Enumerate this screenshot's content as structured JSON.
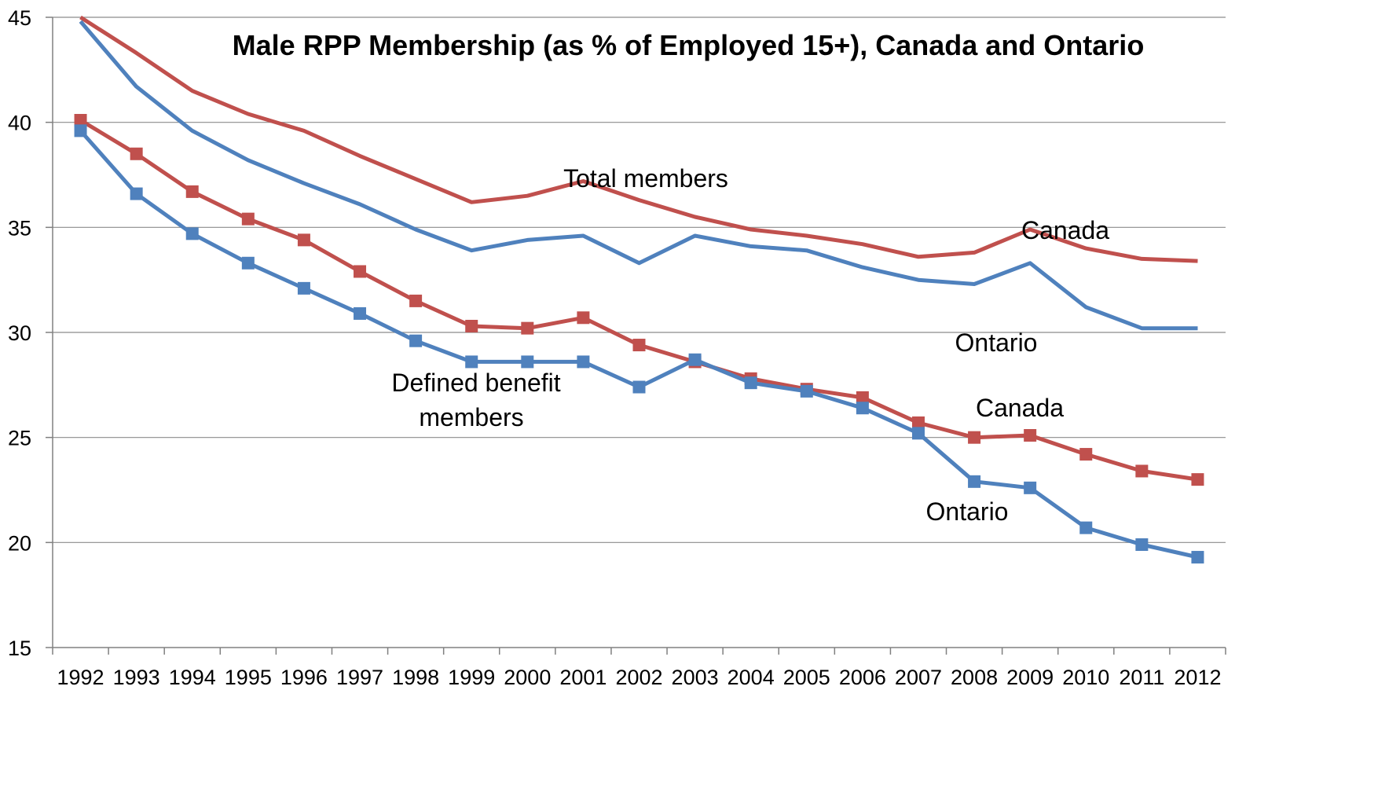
{
  "chart_data": {
    "type": "line",
    "title": "Male RPP Membership (as % of Employed 15+), Canada and Ontario",
    "xlabel": "",
    "ylabel": "",
    "ylim": [
      15,
      45
    ],
    "yticks": [
      "15",
      "20",
      "25",
      "30",
      "35",
      "40",
      "45"
    ],
    "grid": true,
    "legend": "none",
    "categories": [
      "1992",
      "1993",
      "1994",
      "1995",
      "1996",
      "1997",
      "1998",
      "1999",
      "2000",
      "2001",
      "2002",
      "2003",
      "2004",
      "2005",
      "2006",
      "2007",
      "2008",
      "2009",
      "2010",
      "2011",
      "2012"
    ],
    "series": [
      {
        "group": "total",
        "name": "Canada",
        "color": "#c0504d",
        "markers": false,
        "values": [
          45.0,
          43.3,
          41.5,
          40.4,
          39.6,
          38.4,
          37.3,
          36.2,
          36.5,
          37.2,
          36.3,
          35.5,
          34.9,
          34.6,
          34.2,
          33.6,
          33.8,
          34.9,
          34.0,
          33.5,
          33.4
        ]
      },
      {
        "group": "total",
        "name": "Ontario",
        "color": "#4f81bd",
        "markers": false,
        "values": [
          44.8,
          41.7,
          39.6,
          38.2,
          37.1,
          36.1,
          34.9,
          33.9,
          34.4,
          34.6,
          33.3,
          34.6,
          34.1,
          33.9,
          33.1,
          32.5,
          32.3,
          33.3,
          31.2,
          30.2,
          30.2
        ]
      },
      {
        "group": "defined_benefit",
        "name": "Canada",
        "color": "#c0504d",
        "markers": true,
        "values": [
          40.1,
          38.5,
          36.7,
          35.4,
          34.4,
          32.9,
          31.5,
          30.3,
          30.2,
          30.7,
          29.4,
          28.6,
          27.8,
          27.3,
          26.9,
          25.7,
          25.0,
          25.1,
          24.2,
          23.4,
          23.0
        ]
      },
      {
        "group": "defined_benefit",
        "name": "Ontario",
        "color": "#4f81bd",
        "markers": true,
        "values": [
          39.6,
          36.6,
          34.7,
          33.3,
          32.1,
          30.9,
          29.6,
          28.6,
          28.6,
          28.6,
          27.4,
          28.7,
          27.6,
          27.2,
          26.4,
          25.2,
          22.9,
          22.6,
          20.7,
          19.9,
          19.3
        ]
      }
    ],
    "annotations": {
      "total_members": "Total  members",
      "total_canada": "Canada",
      "total_ontario": "Ontario",
      "db_line1": "Defined benefit",
      "db_line2": "members",
      "db_canada": "Canada",
      "db_ontario": "Ontario"
    }
  }
}
